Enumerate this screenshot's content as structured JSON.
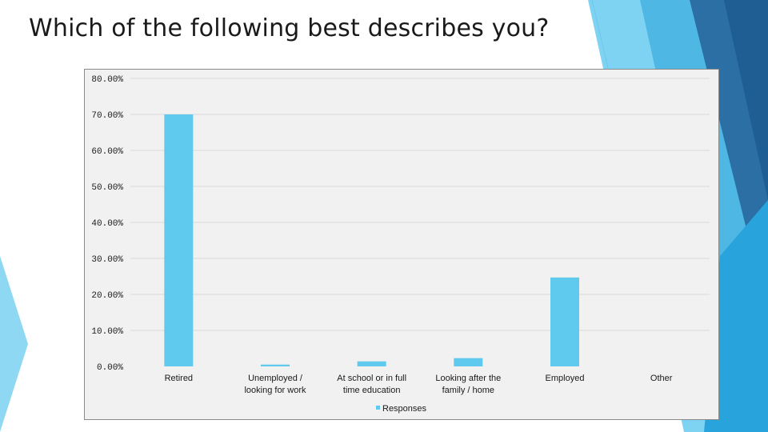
{
  "slide": {
    "title": "Which of the following best describes you?"
  },
  "chart_data": {
    "type": "bar",
    "title": "",
    "xlabel": "",
    "ylabel": "",
    "categories": [
      "Retired",
      "Unemployed / looking for work",
      "At school or in full time education",
      "Looking after the family / home",
      "Employed",
      "Other"
    ],
    "category_lines": [
      [
        "Retired"
      ],
      [
        "Unemployed /",
        "looking for work"
      ],
      [
        "At school or in full",
        "time education"
      ],
      [
        "Looking after the",
        "family / home"
      ],
      [
        "Employed"
      ],
      [
        "Other"
      ]
    ],
    "series": [
      {
        "name": "Responses",
        "values": [
          70.0,
          0.5,
          1.4,
          2.3,
          24.7,
          0.0
        ],
        "color": "#5fcaee"
      }
    ],
    "ylim": [
      0,
      80
    ],
    "ytick_labels": [
      "0.00%",
      "10.00%",
      "20.00%",
      "30.00%",
      "40.00%",
      "50.00%",
      "60.00%",
      "70.00%",
      "80.00%"
    ],
    "grid": true,
    "legend": "bottom",
    "colors": {
      "plot_background": "#f1f1f1",
      "gridline": "#d9d9d9",
      "bar": "#5fcaee"
    }
  }
}
